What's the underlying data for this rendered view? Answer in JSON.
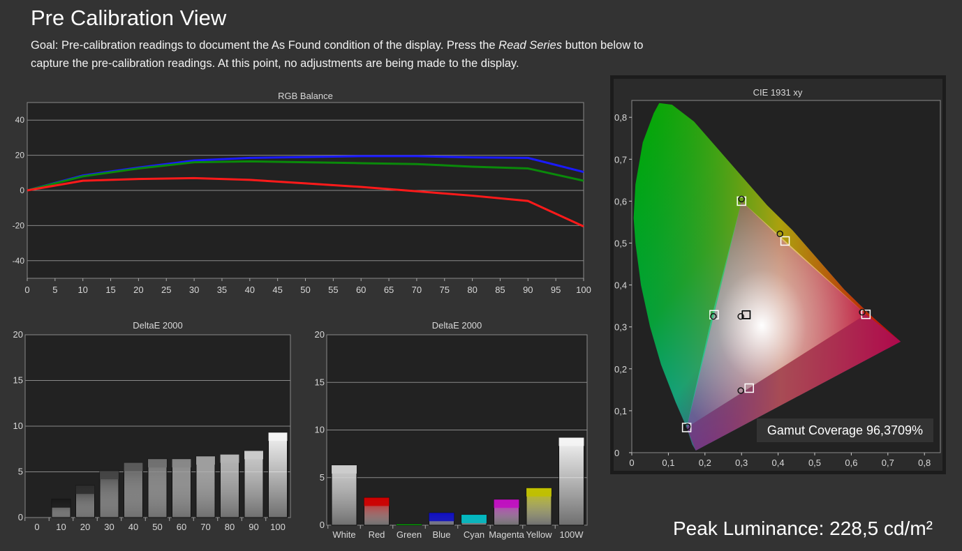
{
  "page": {
    "title": "Pre Calibration View",
    "goal_prefix": "Goal: Pre-calibration readings to document the As Found condition of the display. Press the ",
    "goal_button": "Read Series",
    "goal_suffix": " button below to capture the pre-calibration readings. At this point, no adjustments are being made to the display.",
    "peak_luminance": "Peak Luminance: 228,5 cd/m²",
    "gamut_coverage": "Gamut Coverage 96,3709%"
  },
  "colors": {
    "background": "#333333",
    "plot_bg": "#222222",
    "red": "#ff1a1a",
    "green": "#0a8a0a",
    "blue": "#1a1aff"
  },
  "chart_data": [
    {
      "type": "line",
      "title": "RGB Balance",
      "x": [
        0,
        10,
        20,
        30,
        40,
        50,
        60,
        70,
        80,
        90,
        100
      ],
      "x_ticks": [
        0,
        5,
        10,
        15,
        20,
        25,
        30,
        35,
        40,
        45,
        50,
        55,
        60,
        65,
        70,
        75,
        80,
        85,
        90,
        95,
        100
      ],
      "y_ticks": [
        40,
        20,
        0,
        -20,
        -40
      ],
      "xlim": [
        0,
        100
      ],
      "ylim": [
        -50,
        50
      ],
      "grid": true,
      "series": [
        {
          "color": "#1a1aff",
          "values": [
            0,
            8.5,
            13,
            17,
            18.5,
            19,
            19.5,
            19.5,
            18.8,
            18.5,
            10.5
          ]
        },
        {
          "color": "#0a8a0a",
          "values": [
            0,
            8,
            12.5,
            16,
            16.5,
            16,
            15.5,
            15,
            13.5,
            12.5,
            5.5
          ]
        },
        {
          "color": "#ff1a1a",
          "values": [
            0,
            5.5,
            6.5,
            7,
            6,
            4,
            2,
            -0.5,
            -3,
            -6,
            -20.5
          ]
        }
      ]
    },
    {
      "type": "bar",
      "title": "DeltaE 2000",
      "categories": [
        "0",
        "10",
        "20",
        "30",
        "40",
        "50",
        "60",
        "70",
        "80",
        "90",
        "100"
      ],
      "values": [
        0,
        2.0,
        3.5,
        5.1,
        6.0,
        6.4,
        6.4,
        6.7,
        6.9,
        7.3,
        9.3
      ],
      "colors": [
        "#111111",
        "#1a1a1a",
        "#2e2e2e",
        "#444444",
        "#5a5a5a",
        "#707070",
        "#878787",
        "#9d9d9d",
        "#b4b4b4",
        "#cbcbcb",
        "#f4f4f4"
      ],
      "y_ticks": [
        20,
        15,
        10,
        5,
        0
      ],
      "ylim": [
        0,
        20
      ],
      "grid": true
    },
    {
      "type": "bar",
      "title": "DeltaE 2000",
      "categories": [
        "White",
        "Red",
        "Green",
        "Blue",
        "Cyan",
        "Magenta",
        "Yellow",
        "100W"
      ],
      "values": [
        6.3,
        2.9,
        0.1,
        1.3,
        1.1,
        2.7,
        3.9,
        9.2
      ],
      "colors": [
        "#cccccc",
        "#cc0000",
        "#00b000",
        "#1010c0",
        "#00b8c0",
        "#c010c0",
        "#c0c000",
        "#f4f4f4"
      ],
      "y_ticks": [
        20,
        15,
        10,
        5,
        0
      ],
      "ylim": [
        0,
        20
      ],
      "grid": true
    },
    {
      "type": "scatter",
      "title": "CIE 1931 xy",
      "x_ticks": [
        "0",
        "0,1",
        "0,2",
        "0,3",
        "0,4",
        "0,5",
        "0,6",
        "0,7",
        "0,8"
      ],
      "y_ticks": [
        "0",
        "0,1",
        "0,2",
        "0,3",
        "0,4",
        "0,5",
        "0,6",
        "0,7",
        "0,8"
      ],
      "xlim": [
        0,
        0.8
      ],
      "ylim": [
        0,
        0.85
      ],
      "targets": [
        {
          "x": 0.64,
          "y": 0.33
        },
        {
          "x": 0.3,
          "y": 0.6
        },
        {
          "x": 0.15,
          "y": 0.06
        },
        {
          "x": 0.225,
          "y": 0.329
        },
        {
          "x": 0.321,
          "y": 0.154
        },
        {
          "x": 0.419,
          "y": 0.505
        },
        {
          "x": 0.3127,
          "y": 0.329
        }
      ],
      "measured": [
        {
          "x": 0.63,
          "y": 0.335
        },
        {
          "x": 0.3,
          "y": 0.605
        },
        {
          "x": 0.152,
          "y": 0.062
        },
        {
          "x": 0.223,
          "y": 0.325
        },
        {
          "x": 0.298,
          "y": 0.148
        },
        {
          "x": 0.405,
          "y": 0.522
        },
        {
          "x": 0.298,
          "y": 0.325
        }
      ]
    }
  ]
}
